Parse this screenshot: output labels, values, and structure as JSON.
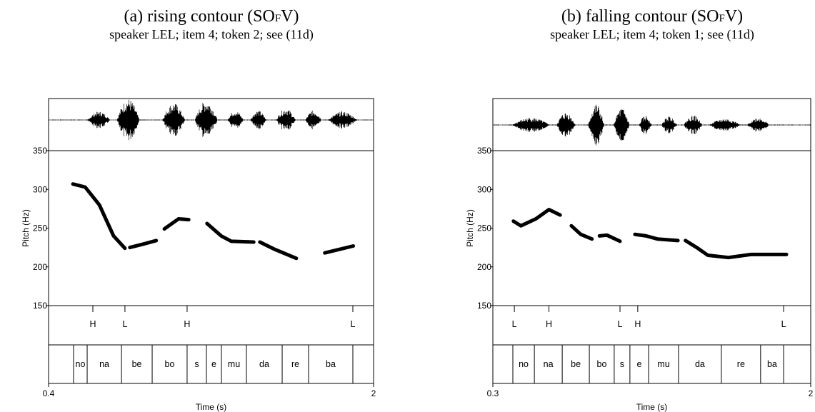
{
  "chart_data": [
    {
      "type": "line",
      "title": [
        "(a) rising contour (SO",
        "F",
        "V)"
      ],
      "subtitle": "speaker LEL; item 4; token 2; see (11d)",
      "x_label": "Time (s)",
      "y_label": "Pitch (Hz)",
      "xlim": [
        0.4,
        2
      ],
      "xticks": [
        0.4,
        2
      ],
      "ylim": [
        150,
        350
      ],
      "yticks": [
        150,
        200,
        250,
        300,
        350
      ],
      "color": "#000000",
      "x": [
        0.52,
        0.58,
        0.65,
        0.72,
        0.776,
        null,
        0.8,
        0.86,
        0.93,
        null,
        0.97,
        1.04,
        1.09,
        null,
        1.18,
        1.25,
        1.3,
        1.41,
        null,
        1.44,
        1.51,
        1.62,
        null,
        1.76,
        1.9
      ],
      "values": [
        307,
        303,
        280,
        240,
        224,
        null,
        225,
        229,
        234,
        null,
        249,
        262,
        261,
        null,
        256,
        240,
        233,
        232,
        null,
        232,
        223,
        211,
        null,
        218,
        227
      ],
      "tones": {
        "labels": [
          "H",
          "L",
          "H",
          "L"
        ],
        "times": [
          0.618,
          0.776,
          1.082,
          1.898
        ]
      },
      "segments": {
        "labels": [
          "no",
          "na",
          "be",
          "bo",
          "s",
          "e",
          "mu",
          "da",
          "re",
          "ba"
        ],
        "bounds": [
          0.523,
          0.59,
          0.759,
          0.91,
          1.082,
          1.177,
          1.251,
          1.374,
          1.55,
          1.68,
          1.898
        ]
      }
    },
    {
      "type": "line",
      "title": [
        "(b) falling contour (SO",
        "F",
        "V)"
      ],
      "subtitle": "speaker LEL; item 4; token 1; see (11d)",
      "x_label": "Time (s)",
      "y_label": "Pitch (Hz)",
      "xlim": [
        0.3,
        2
      ],
      "xticks": [
        0.3,
        2
      ],
      "ylim": [
        150,
        350
      ],
      "yticks": [
        150,
        200,
        250,
        300,
        350
      ],
      "color": "#000000",
      "x": [
        0.41,
        0.45,
        0.53,
        0.6,
        0.66,
        null,
        0.72,
        0.77,
        0.83,
        null,
        0.87,
        0.91,
        0.98,
        null,
        1.06,
        1.12,
        1.18,
        1.29,
        null,
        1.33,
        1.39,
        1.45,
        1.56,
        1.68,
        1.87
      ],
      "values": [
        259,
        253,
        262,
        274,
        267,
        null,
        253,
        242,
        236,
        null,
        240,
        241,
        233,
        null,
        242,
        240,
        236,
        234,
        null,
        234,
        225,
        215,
        212,
        216,
        216
      ],
      "tones": {
        "labels": [
          "L",
          "H",
          "L",
          "H",
          "L"
        ],
        "times": [
          0.415,
          0.6,
          0.98,
          1.075,
          1.855
        ]
      },
      "segments": {
        "labels": [
          "no",
          "na",
          "be",
          "bo",
          "s",
          "e",
          "mu",
          "da",
          "re",
          "ba"
        ],
        "bounds": [
          0.407,
          0.522,
          0.671,
          0.816,
          0.949,
          1.033,
          1.133,
          1.293,
          1.522,
          1.732,
          1.855
        ]
      }
    }
  ]
}
